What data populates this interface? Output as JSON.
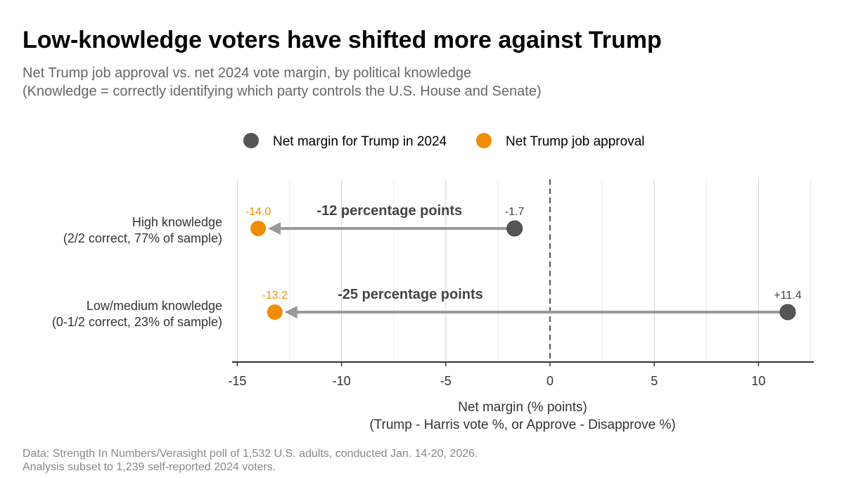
{
  "chart_data": {
    "type": "dumbbell",
    "title": "Low-knowledge voters have shifted more against Trump",
    "subtitle_line1": "Net Trump job approval vs. net 2024 vote margin, by political knowledge",
    "subtitle_line2": "(Knowledge = correctly identifying which party controls the U.S. House and Senate)",
    "legend": [
      {
        "label": "Net margin for Trump in 2024",
        "color": "#555555"
      },
      {
        "label": "Net Trump job approval",
        "color": "#F28C00"
      }
    ],
    "legend_position": "top",
    "categories": [
      {
        "line1": "High knowledge",
        "line2": "(2/2 correct, 77% of sample)",
        "from": -1.7,
        "to": -14.0,
        "from_label": "-1.7",
        "to_label": "-14.0",
        "change_label": "-12 percentage points"
      },
      {
        "line1": "Low/medium knowledge",
        "line2": "(0-1/2 correct, 23% of sample)",
        "from": 11.4,
        "to": -13.2,
        "from_label": "+11.4",
        "to_label": "-13.2",
        "change_label": "-25 percentage points"
      }
    ],
    "xlim": [
      -15.25,
      12.65
    ],
    "xticks": [
      -15,
      -10,
      -5,
      0,
      5,
      10
    ],
    "xtick_labels": [
      "-15",
      "-10",
      "-5",
      "0",
      "5",
      "10"
    ],
    "xlabel_line1": "Net margin (% points)",
    "xlabel_line2": "(Trump - Harris vote %, or Approve - Disapprove %)",
    "grid": true,
    "reference_line": 0
  },
  "caption_line1": "Data: Strength In Numbers/Verasight poll of 1,532 U.S. adults, conducted Jan. 14-20, 2026.",
  "caption_line2": "Analysis subset to 1,239 self-reported 2024 voters."
}
